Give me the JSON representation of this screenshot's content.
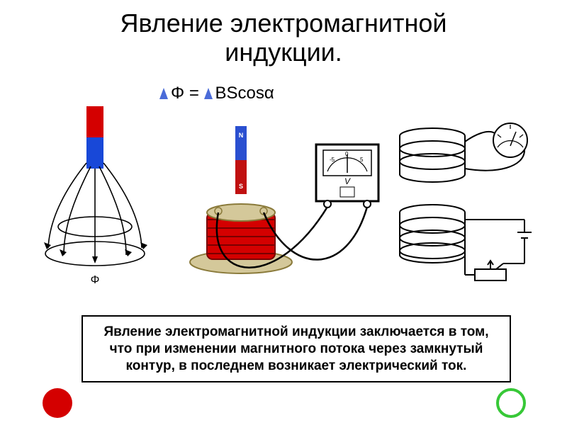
{
  "title": "Явление электромагнитной\nиндукции.",
  "formula": {
    "delta1_color": "#4a6bd8",
    "delta2_color": "#4a6bd8",
    "text_before": "Φ = ",
    "text_after": "BScosα"
  },
  "definition": "Явление электромагнитной индукции заключается в том, что при изменении магнитного потока через замкнутый контур, в последнем возникает электрический ток.",
  "colors": {
    "magnet_red": "#d40000",
    "magnet_blue": "#1848d8",
    "coil_red": "#d40000",
    "coil_top": "#d4c89a",
    "black": "#000000",
    "white": "#ffffff",
    "n_label_bg": "#2a4fd0",
    "s_label_bg": "#c01010"
  },
  "diagram1": {
    "type": "magnet-field-lines",
    "magnet_top_color": "#d40000",
    "magnet_bottom_color": "#1848d8",
    "field_line_color": "#000000"
  },
  "diagram2": {
    "type": "coil-magnet-galvanometer",
    "magnet_n": "N",
    "magnet_s": "S",
    "meter_label": "V",
    "meter_ticks": [
      "-5",
      "0",
      "5"
    ]
  },
  "diagram3": {
    "type": "two-coils-transformer-circuit"
  },
  "nav": {
    "red_circle_color": "#d40000",
    "green_circle_border": "#37c837"
  }
}
